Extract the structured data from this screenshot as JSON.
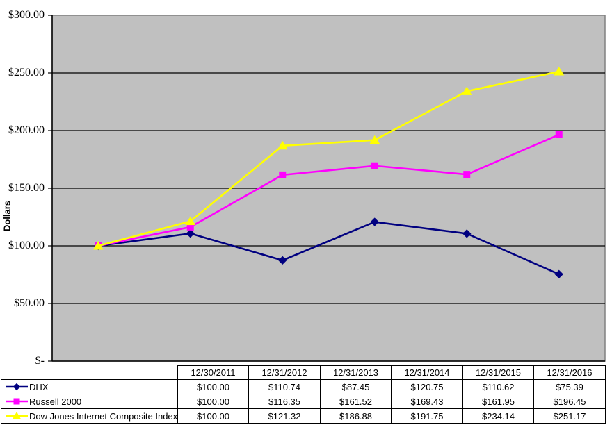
{
  "chart_data": {
    "type": "line",
    "title": "",
    "xlabel": "",
    "ylabel": "Dollars",
    "legend_position": "table-left-column",
    "grid": true,
    "plot_bg_color": "#c0c0c0",
    "plot_border_color": "#808080",
    "gridline_color": "#000000",
    "axis_color": "#000000",
    "categories": [
      "12/30/2011",
      "12/31/2012",
      "12/31/2013",
      "12/31/2014",
      "12/31/2015",
      "12/31/2016"
    ],
    "series": [
      {
        "name": "DHX",
        "color": "#000080",
        "marker": "diamond",
        "values": [
          100.0,
          110.74,
          87.45,
          120.75,
          110.62,
          75.39
        ]
      },
      {
        "name": "Russell 2000",
        "color": "#ff00ff",
        "marker": "square",
        "values": [
          100.0,
          116.35,
          161.52,
          169.43,
          161.95,
          196.45
        ]
      },
      {
        "name": "Dow Jones Internet Composite Index",
        "color": "#ffff00",
        "marker": "triangle",
        "values": [
          100.0,
          121.32,
          186.88,
          191.75,
          234.14,
          251.17
        ]
      }
    ],
    "y_axis": {
      "min": 0,
      "max": 300,
      "step": 50,
      "tick_labels": [
        "$-",
        "$50.00",
        "$100.00",
        "$150.00",
        "$200.00",
        "$250.00",
        "$300.00"
      ]
    }
  },
  "table": {
    "corner_label": "",
    "header": [
      "12/30/2011",
      "12/31/2012",
      "12/31/2013",
      "12/31/2014",
      "12/31/2015",
      "12/31/2016"
    ],
    "rows": [
      {
        "label": "DHX",
        "values": [
          "$100.00",
          "$110.74",
          "$87.45",
          "$120.75",
          "$110.62",
          "$75.39"
        ]
      },
      {
        "label": "Russell 2000",
        "values": [
          "$100.00",
          "$116.35",
          "$161.52",
          "$169.43",
          "$161.95",
          "$196.45"
        ]
      },
      {
        "label": "Dow Jones Internet Composite Index",
        "values": [
          "$100.00",
          "$121.32",
          "$186.88",
          "$191.75",
          "$234.14",
          "$251.17"
        ]
      }
    ]
  }
}
